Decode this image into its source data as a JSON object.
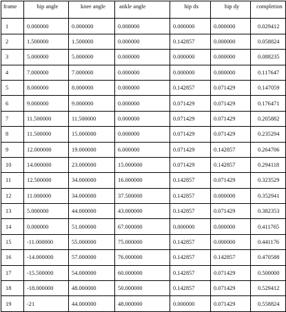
{
  "table": {
    "columns": [
      "frame",
      "hip angle",
      "knee angle",
      "ankle angle",
      "hip dx",
      "hip dy",
      "completion"
    ],
    "rows": [
      [
        "1",
        "0.000000",
        "0.000000",
        "0.000000",
        "0.000000",
        "0.000000",
        "0.029412"
      ],
      [
        "2",
        "1.500000",
        "1.500000",
        "0.000000",
        "0.142857",
        "0.000000",
        "0.058824"
      ],
      [
        "3",
        "5.000000",
        "5.000000",
        "0.000000",
        "0.000000",
        "0.000000",
        "0.088235"
      ],
      [
        "4",
        "7.000000",
        "7.000000",
        "0.000000",
        "0.000000",
        "0.000000",
        "0.117647"
      ],
      [
        "5",
        "8.000000",
        "8.000000",
        "0.000000",
        "0.142857",
        "0.071429",
        "0.147059"
      ],
      [
        "6",
        "9.000000",
        "9.000000",
        "0.000000",
        "0.071429",
        "0.071429",
        "0.176471"
      ],
      [
        "7",
        "11.500000",
        "11.500000",
        "0.000000",
        "0.071429",
        "0.071429",
        "0.205882"
      ],
      [
        "8",
        "11.500000",
        "15.000000",
        "0.000000",
        "0.071429",
        "0.071429",
        "0.235294"
      ],
      [
        "9",
        "12.000000",
        "19.000000",
        "6.000000",
        "0.071429",
        "0.142857",
        "0.264706"
      ],
      [
        "10",
        "14.000000",
        "23.000000",
        "15.000000",
        "0.071429",
        "0.142857",
        "0.294118"
      ],
      [
        "11",
        "12.500000",
        "34.000000",
        "16.000000",
        "0.142857",
        "0.071429",
        "0.323529"
      ],
      [
        "12",
        "11.000000",
        "34.000000",
        "37.500000",
        "0.142857",
        "0.000000",
        "0.352941"
      ],
      [
        "13",
        "5.000000",
        "44.000000",
        "43.000000",
        "0.142857",
        "0.071429",
        "0.382353"
      ],
      [
        "14",
        "0.000000",
        "51.000000",
        "67.000000",
        "0.000000",
        "0.000000",
        "0.411765"
      ],
      [
        "15",
        "-11.000000",
        "55.000000",
        "75.000000",
        "0.142857",
        "0.000000",
        "0.441176"
      ],
      [
        "16",
        "-14.000000",
        "57.000000",
        "76.000000",
        "0.142857",
        "0.142857",
        "0.470588"
      ],
      [
        "17",
        "-15.500000",
        "54.000000",
        "60.000000",
        "0.142857",
        "0.071429",
        "0.500000"
      ],
      [
        "18",
        "-18.000000",
        "48.000000",
        "50.000000",
        "0.142857",
        "0.071429",
        "0.529412"
      ],
      [
        "19",
        "-21",
        "44.000000",
        "48.000000",
        "0.000000",
        "0.071429",
        "0.558824"
      ]
    ]
  }
}
